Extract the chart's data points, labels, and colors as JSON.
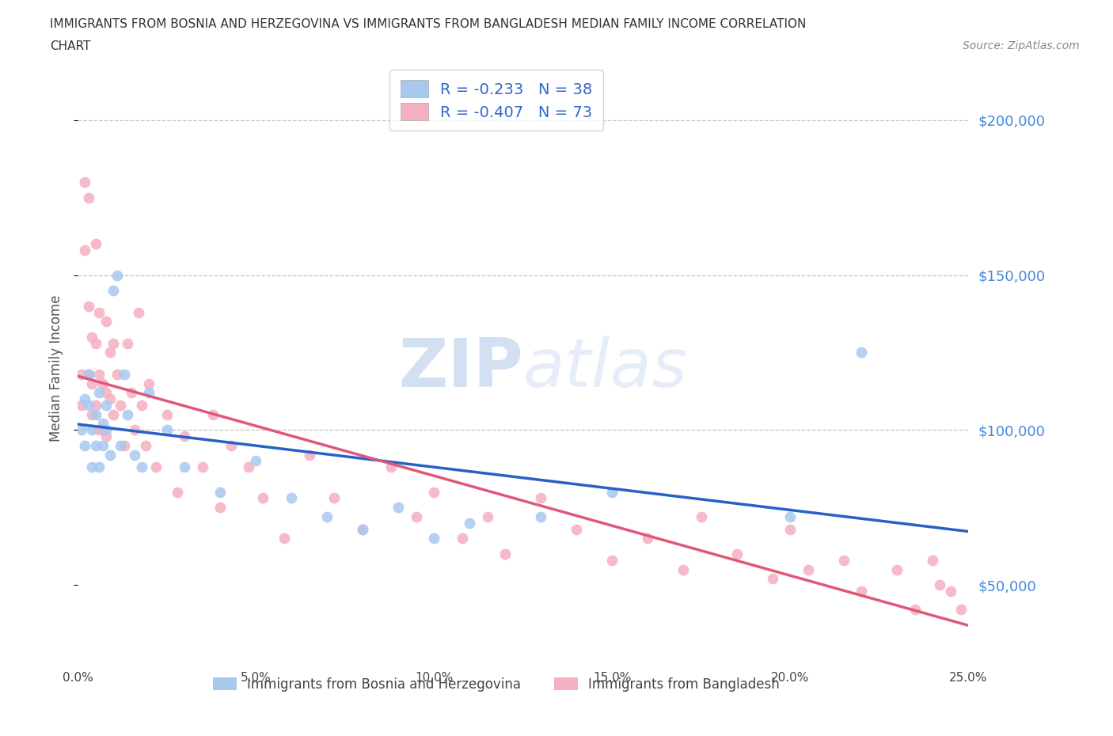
{
  "title_line1": "IMMIGRANTS FROM BOSNIA AND HERZEGOVINA VS IMMIGRANTS FROM BANGLADESH MEDIAN FAMILY INCOME CORRELATION",
  "title_line2": "CHART",
  "source": "Source: ZipAtlas.com",
  "ylabel": "Median Family Income",
  "xlim": [
    0,
    0.25
  ],
  "ylim": [
    25000,
    215000
  ],
  "yticks": [
    50000,
    100000,
    150000,
    200000
  ],
  "ytick_labels": [
    "$50,000",
    "$100,000",
    "$150,000",
    "$200,000"
  ],
  "xticks": [
    0.0,
    0.05,
    0.1,
    0.15,
    0.2,
    0.25
  ],
  "xtick_labels": [
    "0.0%",
    "5.0%",
    "10.0%",
    "15.0%",
    "20.0%",
    "25.0%"
  ],
  "watermark": "ZIPatlas",
  "color_bosnia": "#a8c8f0",
  "color_bangladesh": "#f4b0c0",
  "trendline_color_bosnia": "#2860c8",
  "trendline_color_bangladesh": "#e05878",
  "R_bosnia": -0.233,
  "N_bosnia": 38,
  "R_bangladesh": -0.407,
  "N_bangladesh": 73,
  "legend_label_bosnia": "Immigrants from Bosnia and Herzegovina",
  "legend_label_bangladesh": "Immigrants from Bangladesh",
  "grid_lines": [
    100000,
    150000,
    200000
  ],
  "bosnia_x": [
    0.001,
    0.002,
    0.002,
    0.003,
    0.003,
    0.004,
    0.004,
    0.005,
    0.005,
    0.006,
    0.006,
    0.007,
    0.007,
    0.008,
    0.008,
    0.009,
    0.01,
    0.011,
    0.012,
    0.013,
    0.014,
    0.016,
    0.018,
    0.02,
    0.025,
    0.03,
    0.04,
    0.05,
    0.06,
    0.07,
    0.08,
    0.09,
    0.1,
    0.11,
    0.13,
    0.15,
    0.2,
    0.22
  ],
  "bosnia_y": [
    100000,
    110000,
    95000,
    108000,
    118000,
    100000,
    88000,
    105000,
    95000,
    112000,
    88000,
    102000,
    95000,
    108000,
    100000,
    92000,
    145000,
    150000,
    95000,
    118000,
    105000,
    92000,
    88000,
    112000,
    100000,
    88000,
    80000,
    90000,
    78000,
    72000,
    68000,
    75000,
    65000,
    70000,
    72000,
    80000,
    72000,
    125000
  ],
  "bangladesh_x": [
    0.001,
    0.001,
    0.002,
    0.002,
    0.003,
    0.003,
    0.003,
    0.004,
    0.004,
    0.004,
    0.005,
    0.005,
    0.005,
    0.006,
    0.006,
    0.006,
    0.007,
    0.007,
    0.008,
    0.008,
    0.008,
    0.009,
    0.009,
    0.01,
    0.01,
    0.011,
    0.012,
    0.013,
    0.014,
    0.015,
    0.016,
    0.017,
    0.018,
    0.019,
    0.02,
    0.022,
    0.025,
    0.028,
    0.03,
    0.035,
    0.038,
    0.04,
    0.043,
    0.048,
    0.052,
    0.058,
    0.065,
    0.072,
    0.08,
    0.088,
    0.095,
    0.1,
    0.108,
    0.115,
    0.12,
    0.13,
    0.14,
    0.15,
    0.16,
    0.17,
    0.175,
    0.185,
    0.195,
    0.2,
    0.205,
    0.215,
    0.22,
    0.23,
    0.235,
    0.24,
    0.242,
    0.245,
    0.248
  ],
  "bangladesh_y": [
    118000,
    108000,
    180000,
    158000,
    175000,
    140000,
    118000,
    130000,
    115000,
    105000,
    160000,
    128000,
    108000,
    118000,
    138000,
    100000,
    115000,
    100000,
    135000,
    112000,
    98000,
    125000,
    110000,
    128000,
    105000,
    118000,
    108000,
    95000,
    128000,
    112000,
    100000,
    138000,
    108000,
    95000,
    115000,
    88000,
    105000,
    80000,
    98000,
    88000,
    105000,
    75000,
    95000,
    88000,
    78000,
    65000,
    92000,
    78000,
    68000,
    88000,
    72000,
    80000,
    65000,
    72000,
    60000,
    78000,
    68000,
    58000,
    65000,
    55000,
    72000,
    60000,
    52000,
    68000,
    55000,
    58000,
    48000,
    55000,
    42000,
    58000,
    50000,
    48000,
    42000
  ]
}
